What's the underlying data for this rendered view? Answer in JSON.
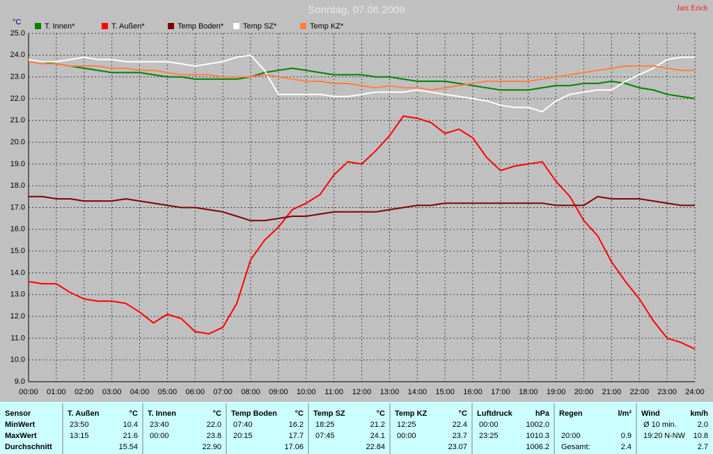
{
  "chart_data": {
    "type": "line",
    "title": "Sonntag, 07.06.2009",
    "author": "Jarz Erich",
    "ylabel": "°C",
    "grid": true,
    "x": [
      0,
      0.5,
      1,
      1.5,
      2,
      2.5,
      3,
      3.5,
      4,
      4.5,
      5,
      5.5,
      6,
      6.5,
      7,
      7.5,
      8,
      8.5,
      9,
      9.5,
      10,
      10.5,
      11,
      11.5,
      12,
      12.5,
      13,
      13.5,
      14,
      14.5,
      15,
      15.5,
      16,
      16.5,
      17,
      17.5,
      18,
      18.5,
      19,
      19.5,
      20,
      20.5,
      21,
      21.5,
      22,
      22.5,
      23,
      23.5,
      24
    ],
    "xlim": [
      0,
      24
    ],
    "xticks": [
      {
        "value": 0,
        "label": "00:00"
      },
      {
        "value": 1,
        "label": "01:00"
      },
      {
        "value": 2,
        "label": "02:00"
      },
      {
        "value": 3,
        "label": "03:00"
      },
      {
        "value": 4,
        "label": "04:00"
      },
      {
        "value": 5,
        "label": "05:00"
      },
      {
        "value": 6,
        "label": "06:00"
      },
      {
        "value": 7,
        "label": "07:00"
      },
      {
        "value": 8,
        "label": "08:00"
      },
      {
        "value": 9,
        "label": "09:00"
      },
      {
        "value": 10,
        "label": "10:00"
      },
      {
        "value": 11,
        "label": "11:00"
      },
      {
        "value": 12,
        "label": "12:00"
      },
      {
        "value": 13,
        "label": "13:00"
      },
      {
        "value": 14,
        "label": "14:00"
      },
      {
        "value": 15,
        "label": "15:00"
      },
      {
        "value": 16,
        "label": "16:00"
      },
      {
        "value": 17,
        "label": "17:00"
      },
      {
        "value": 18,
        "label": "18:00"
      },
      {
        "value": 19,
        "label": "19:00"
      },
      {
        "value": 20,
        "label": "20:00"
      },
      {
        "value": 21,
        "label": "21:00"
      },
      {
        "value": 22,
        "label": "22:00"
      },
      {
        "value": 23,
        "label": "23:00"
      },
      {
        "value": 24,
        "label": "24:00"
      }
    ],
    "ylim": [
      9,
      25
    ],
    "yticks": [
      {
        "value": 9,
        "label": "9.0"
      },
      {
        "value": 10,
        "label": "10.0"
      },
      {
        "value": 11,
        "label": "11.0"
      },
      {
        "value": 12,
        "label": "12.0"
      },
      {
        "value": 13,
        "label": "13.0"
      },
      {
        "value": 14,
        "label": "14.0"
      },
      {
        "value": 15,
        "label": "15.0"
      },
      {
        "value": 16,
        "label": "16.0"
      },
      {
        "value": 17,
        "label": "17.0"
      },
      {
        "value": 18,
        "label": "18.0"
      },
      {
        "value": 19,
        "label": "19.0"
      },
      {
        "value": 20,
        "label": "20.0"
      },
      {
        "value": 21,
        "label": "21.0"
      },
      {
        "value": 22,
        "label": "22.0"
      },
      {
        "value": 23,
        "label": "23.0"
      },
      {
        "value": 24,
        "label": "24.0"
      },
      {
        "value": 25,
        "label": "25.0"
      }
    ],
    "series": [
      {
        "name": "T. Innen*",
        "color": "#008000",
        "values": [
          23.8,
          23.7,
          23.6,
          23.5,
          23.4,
          23.3,
          23.2,
          23.2,
          23.2,
          23.1,
          23.0,
          23.0,
          22.9,
          22.9,
          22.9,
          22.9,
          23.0,
          23.2,
          23.3,
          23.4,
          23.3,
          23.2,
          23.1,
          23.1,
          23.1,
          23.0,
          23.0,
          22.9,
          22.8,
          22.8,
          22.8,
          22.7,
          22.6,
          22.5,
          22.4,
          22.4,
          22.4,
          22.5,
          22.6,
          22.6,
          22.7,
          22.7,
          22.8,
          22.7,
          22.5,
          22.4,
          22.2,
          22.1,
          22.0
        ]
      },
      {
        "name": "T. Außen*",
        "color": "#ff0000",
        "values": [
          13.6,
          13.5,
          13.5,
          13.1,
          12.8,
          12.7,
          12.7,
          12.6,
          12.2,
          11.7,
          12.1,
          11.9,
          11.3,
          11.2,
          11.5,
          12.6,
          14.6,
          15.5,
          16.1,
          16.9,
          17.2,
          17.6,
          18.5,
          19.1,
          19.0,
          19.6,
          20.3,
          21.2,
          21.1,
          20.9,
          20.4,
          20.6,
          20.2,
          19.3,
          18.7,
          18.9,
          19.0,
          19.1,
          18.2,
          17.5,
          16.4,
          15.7,
          14.5,
          13.6,
          12.8,
          11.8,
          11.0,
          10.8,
          10.5
        ]
      },
      {
        "name": "Temp Boden*",
        "color": "#800000",
        "values": [
          17.5,
          17.5,
          17.4,
          17.4,
          17.3,
          17.3,
          17.3,
          17.4,
          17.3,
          17.2,
          17.1,
          17.0,
          17.0,
          16.9,
          16.8,
          16.6,
          16.4,
          16.4,
          16.5,
          16.6,
          16.6,
          16.7,
          16.8,
          16.8,
          16.8,
          16.8,
          16.9,
          17.0,
          17.1,
          17.1,
          17.2,
          17.2,
          17.2,
          17.2,
          17.2,
          17.2,
          17.2,
          17.2,
          17.1,
          17.1,
          17.1,
          17.5,
          17.4,
          17.4,
          17.4,
          17.3,
          17.2,
          17.1,
          17.1
        ]
      },
      {
        "name": "Temp SZ*",
        "color": "#ffffff",
        "values": [
          23.8,
          23.7,
          23.7,
          23.8,
          23.9,
          23.8,
          23.8,
          23.7,
          23.7,
          23.7,
          23.7,
          23.6,
          23.5,
          23.6,
          23.7,
          23.9,
          24.0,
          23.3,
          22.2,
          22.2,
          22.2,
          22.2,
          22.1,
          22.1,
          22.2,
          22.3,
          22.3,
          22.3,
          22.4,
          22.3,
          22.2,
          22.1,
          22.0,
          21.9,
          21.7,
          21.6,
          21.6,
          21.4,
          21.9,
          22.2,
          22.3,
          22.4,
          22.4,
          22.8,
          23.1,
          23.4,
          23.8,
          23.9,
          23.9
        ]
      },
      {
        "name": "Temp KZ*",
        "color": "#ff8040",
        "values": [
          23.7,
          23.6,
          23.6,
          23.5,
          23.5,
          23.5,
          23.4,
          23.4,
          23.3,
          23.3,
          23.2,
          23.1,
          23.1,
          23.1,
          23.0,
          23.0,
          23.0,
          23.1,
          23.0,
          22.9,
          22.8,
          22.8,
          22.7,
          22.7,
          22.6,
          22.5,
          22.6,
          22.5,
          22.5,
          22.4,
          22.5,
          22.6,
          22.7,
          22.8,
          22.8,
          22.8,
          22.8,
          22.9,
          23.0,
          23.1,
          23.2,
          23.3,
          23.4,
          23.5,
          23.5,
          23.5,
          23.4,
          23.3,
          23.3
        ]
      }
    ]
  },
  "table": {
    "columns": [
      {
        "name": "Sensor",
        "cells": [
          [
            "MinWert"
          ],
          [
            "MaxWert"
          ],
          [
            "Durchschnitt"
          ]
        ]
      },
      {
        "name": "T. Außen",
        "unit": "°C",
        "cells": [
          [
            "23:50",
            "10.4"
          ],
          [
            "13:15",
            "21.6"
          ],
          [
            "15.54"
          ]
        ]
      },
      {
        "name": "T. Innen",
        "unit": "°C",
        "cells": [
          [
            "23:40",
            "22.0"
          ],
          [
            "00:00",
            "23.8"
          ],
          [
            "22.90"
          ]
        ]
      },
      {
        "name": "Temp Boden",
        "unit": "°C",
        "cells": [
          [
            "07:40",
            "16.2"
          ],
          [
            "20:15",
            "17.7"
          ],
          [
            "17.06"
          ]
        ]
      },
      {
        "name": "Temp SZ",
        "unit": "°C",
        "cells": [
          [
            "18:25",
            "21.2"
          ],
          [
            "07:45",
            "24.1"
          ],
          [
            "22.84"
          ]
        ]
      },
      {
        "name": "Temp KZ",
        "unit": "°C",
        "cells": [
          [
            "12:25",
            "22.4"
          ],
          [
            "00:00",
            "23.7"
          ],
          [
            "23.07"
          ]
        ]
      },
      {
        "name": "Luftdruck",
        "unit": "hPa",
        "cells": [
          [
            "00:00",
            "1002.0"
          ],
          [
            "23:25",
            "1010.3"
          ],
          [
            "1006.2"
          ]
        ]
      },
      {
        "name": "Regen",
        "unit": "l/m²",
        "cells": [
          [],
          [
            "20:00",
            "0.9"
          ],
          [
            "Gesamt:",
            "2.4"
          ]
        ]
      },
      {
        "name": "Wind",
        "unit": "km/h",
        "cells": [
          [
            "Ø 10 min.",
            "2.0"
          ],
          [
            "19:20",
            "N-NW",
            "10.8"
          ],
          [
            "2.7"
          ]
        ]
      }
    ]
  }
}
